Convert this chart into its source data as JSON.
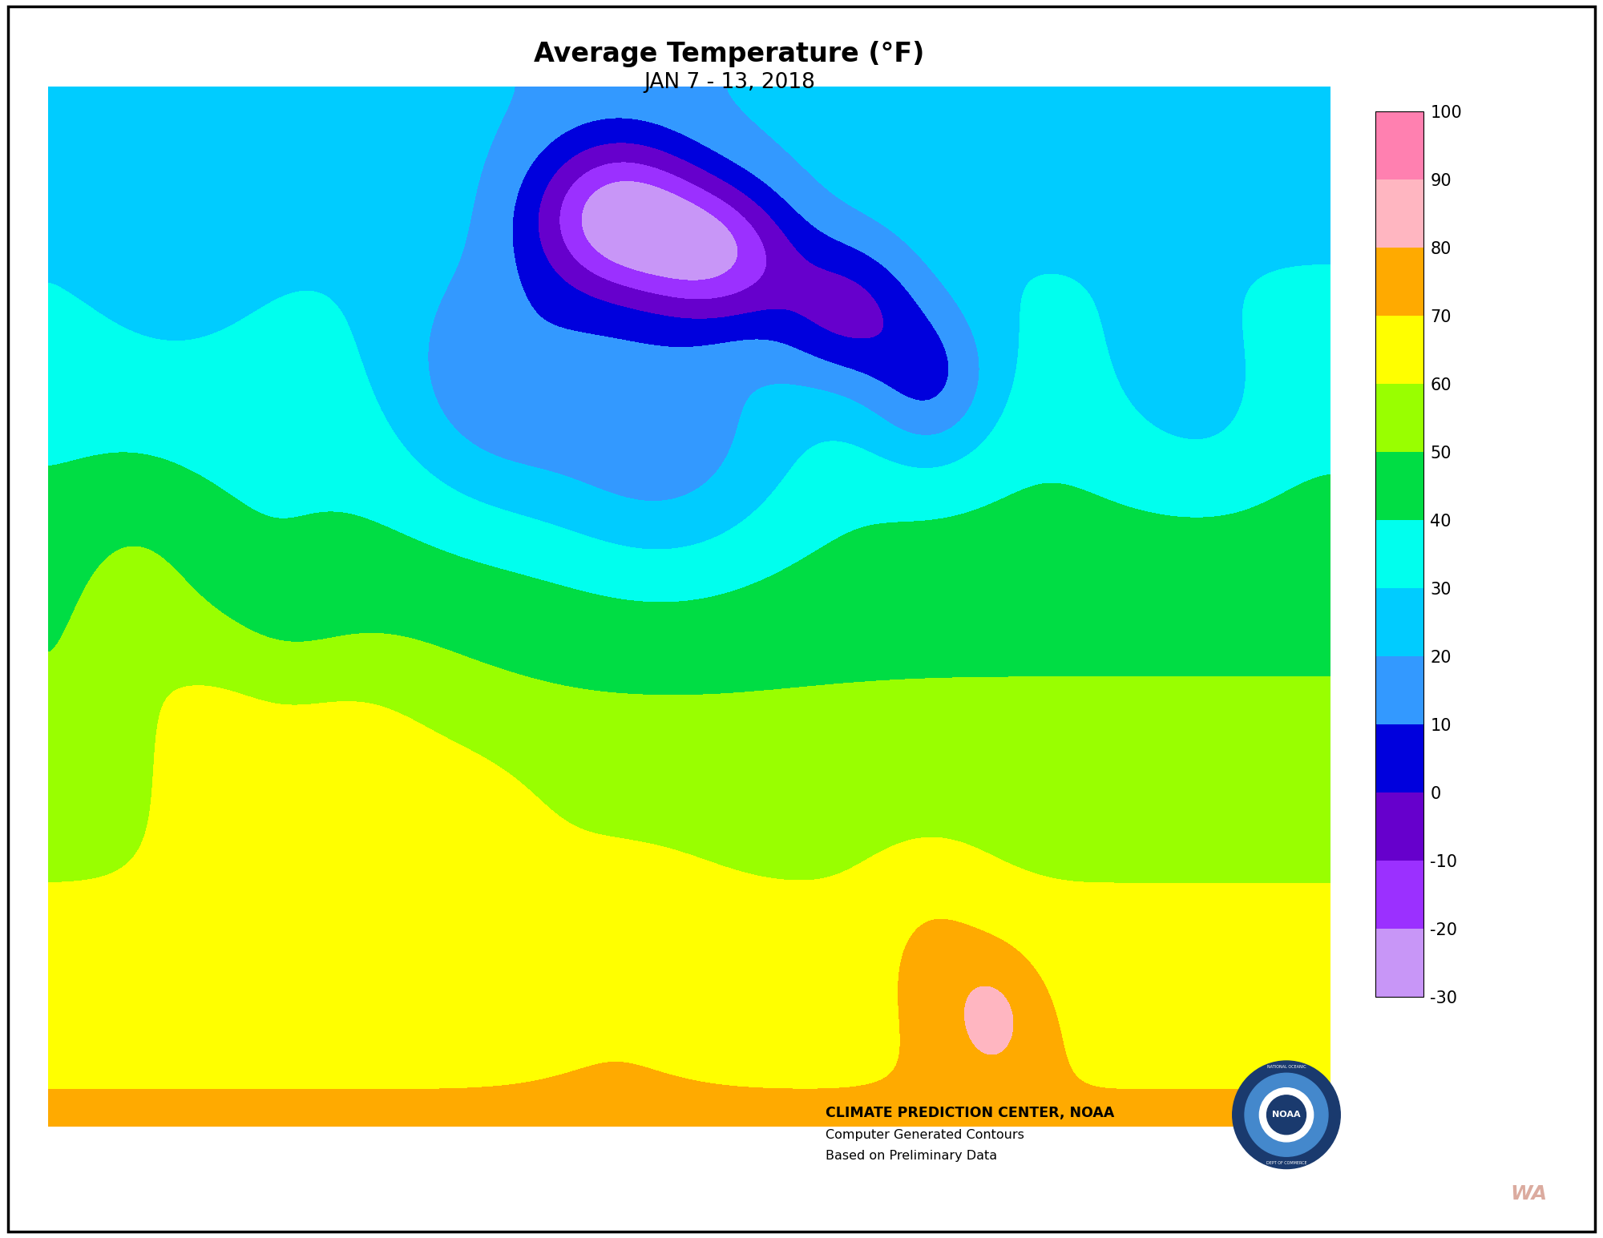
{
  "title_line1": "Average Temperature (°F)",
  "title_line2": "JAN 7 - 13, 2018",
  "colorbar_bounds": [
    -30,
    -20,
    -10,
    0,
    10,
    20,
    30,
    40,
    50,
    60,
    70,
    80,
    90,
    100
  ],
  "colorbar_colors": [
    "#c896f7",
    "#9b30ff",
    "#6600cc",
    "#0000dd",
    "#3399ff",
    "#00ccff",
    "#00ffee",
    "#00dd44",
    "#99ff00",
    "#ffff00",
    "#ffaa00",
    "#ffb6c1",
    "#ff80b0",
    "#ff0000"
  ],
  "background_color": "#ffffff",
  "credit_line1": "CLIMATE PREDICTION CENTER, NOAA",
  "credit_line2": "Computer Generated Contours",
  "credit_line3": "Based on Preliminary Data",
  "map_extent": [
    -125.0,
    -66.5,
    24.0,
    50.0
  ],
  "alaska_extent": [
    -180,
    -130,
    53,
    72
  ],
  "hawaii_extent": [
    -161,
    -154,
    18.8,
    22.5
  ],
  "fig_border": [
    0.01,
    0.01,
    0.98,
    0.98
  ]
}
